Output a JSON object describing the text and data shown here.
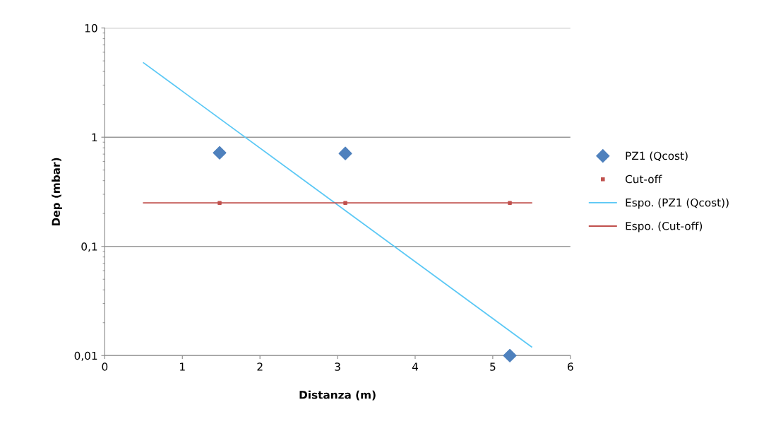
{
  "chart_data": {
    "type": "scatter",
    "xlabel": "Distanza (m)",
    "ylabel": "Dep (mbar)",
    "log": "y",
    "xlim": [
      0,
      6
    ],
    "xticks": [
      0,
      1,
      2,
      3,
      4,
      5,
      6
    ],
    "ylim": [
      0.01,
      10
    ],
    "yticks": [
      {
        "value": 0.01,
        "label": "0,01"
      },
      {
        "value": 0.1,
        "label": "0,1"
      },
      1,
      10
    ],
    "grid": "y",
    "legend": "right",
    "series": [
      {
        "name": "PZ1 (Qcost)",
        "marker": "diamond",
        "color": "#4f81bd",
        "x": [
          1.48,
          3.1,
          5.22
        ],
        "values": [
          0.72,
          0.71,
          0.01
        ]
      },
      {
        "name": "Cut-off",
        "marker": "square",
        "color": "#c0504d",
        "x": [
          1.48,
          3.1,
          5.22
        ],
        "values": [
          0.25,
          0.25,
          0.25
        ]
      },
      {
        "name": "Espo. (PZ1 (Qcost))",
        "type": "line",
        "marker": "none",
        "color": "#5bc8f5",
        "x": [
          0.5,
          5.5
        ],
        "values": [
          4.8,
          0.012
        ]
      },
      {
        "name": "Espo. (Cut-off)",
        "type": "line",
        "marker": "none",
        "color": "#c0504d",
        "x": [
          0.5,
          5.5
        ],
        "values": [
          0.25,
          0.25
        ]
      }
    ]
  }
}
